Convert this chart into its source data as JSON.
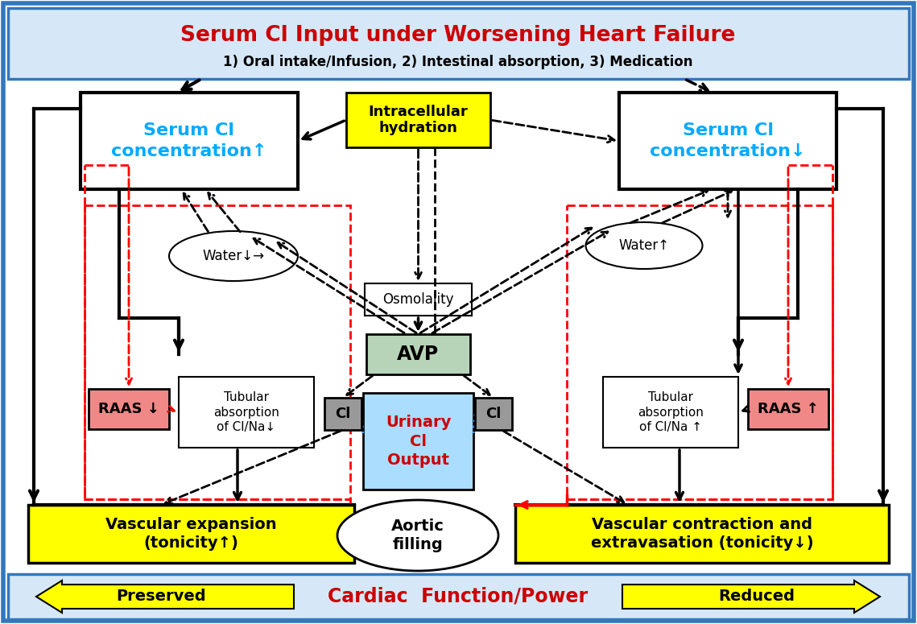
{
  "title_line1": "Serum Cl Input under Worsening Heart Failure",
  "title_line2": "1) Oral intake/Infusion, 2) Intestinal absorption, 3) Medication",
  "title_bg": "#d6e8f7",
  "title_border": "#3377bb",
  "serum_cl_up_text": "Serum Cl\nconcentration↑",
  "serum_cl_down_text": "Serum Cl\nconcentration↓",
  "intracellular_text": "Intracellular\nhydration",
  "water_down_text": "Water↓→",
  "water_up_text": "Water↑",
  "osmolality_text": "Osmolality",
  "avp_text": "AVP",
  "urinary_text": "Urinary\nCl\nOutput",
  "raas_down_text": "RAAS ↓",
  "raas_up_text": "RAAS ↑",
  "tubular_left_text": "Tubular\nabsorption\nof Cl/Na↓",
  "tubular_right_text": "Tubular\nabsorption\nof Cl/Na ↑",
  "cl_text": "Cl",
  "vascular_expand_text": "Vascular expansion\n(tonicity↑)",
  "vascular_contract_text": "Vascular contraction and\nextravasation (tonicity↓)",
  "aortic_text": "Aortic\nfilling",
  "preserved_text": "Preserved",
  "reduced_text": "Reduced",
  "cardiac_text": "Cardiac  Function/Power",
  "bg_color": "white",
  "yellow": "#ffff00",
  "cyan_text": "#00aaff",
  "red_text": "#cc0000",
  "green_box": "#b8d4b8",
  "gray_box": "#999999",
  "light_blue_box": "#aaddff",
  "raas_color": "#f08888",
  "outer_border": "#3377bb"
}
